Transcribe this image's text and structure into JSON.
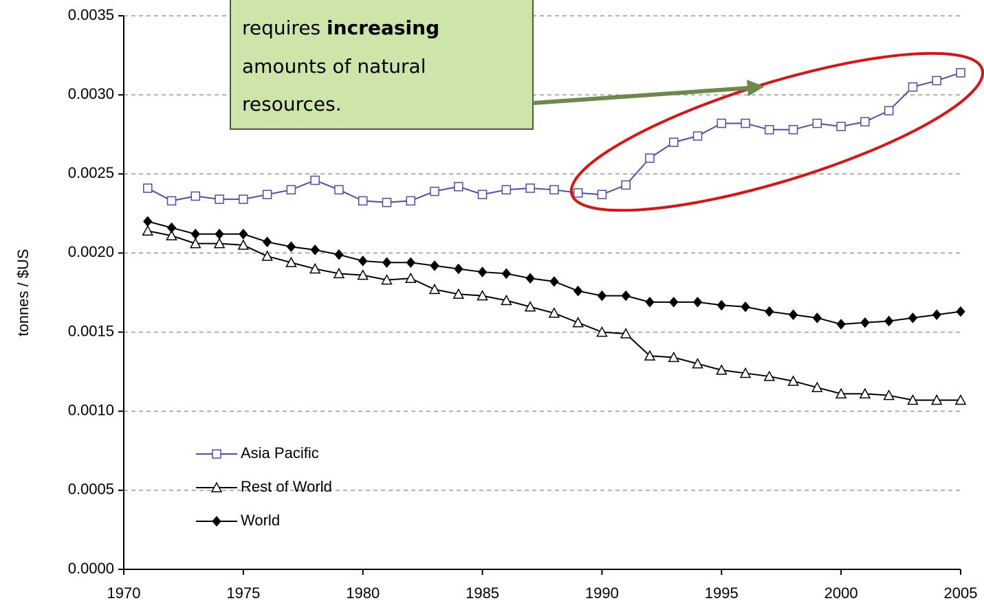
{
  "chart_data": {
    "type": "line",
    "y_label": "tonnes / $US",
    "annotation": {
      "prefix": "requires ",
      "bold": "increasing",
      "lines": [
        "amounts of natural",
        "resources."
      ]
    },
    "x": [
      1971,
      1972,
      1973,
      1974,
      1975,
      1976,
      1977,
      1978,
      1979,
      1980,
      1981,
      1982,
      1983,
      1984,
      1985,
      1986,
      1987,
      1988,
      1989,
      1990,
      1991,
      1992,
      1993,
      1994,
      1995,
      1996,
      1997,
      1998,
      1999,
      2000,
      2001,
      2002,
      2003,
      2004,
      2005
    ],
    "series": [
      {
        "name": "Asia Pacific",
        "color": "#4a4ab8",
        "marker": "square",
        "values": [
          0.00241,
          0.00233,
          0.00236,
          0.00234,
          0.00234,
          0.00237,
          0.0024,
          0.00246,
          0.0024,
          0.00233,
          0.00232,
          0.00233,
          0.00239,
          0.00242,
          0.00237,
          0.0024,
          0.00241,
          0.0024,
          0.00238,
          0.00237,
          0.00243,
          0.0026,
          0.0027,
          0.00274,
          0.00282,
          0.00282,
          0.00278,
          0.00278,
          0.00282,
          0.0028,
          0.00283,
          0.0029,
          0.00305,
          0.00309,
          0.00314
        ]
      },
      {
        "name": "Rest of World",
        "color": "#000000",
        "marker": "triangle",
        "values": [
          0.00214,
          0.00211,
          0.00206,
          0.00206,
          0.00205,
          0.00198,
          0.00194,
          0.0019,
          0.00187,
          0.00186,
          0.00183,
          0.00184,
          0.00177,
          0.00174,
          0.00173,
          0.0017,
          0.00166,
          0.00162,
          0.00156,
          0.0015,
          0.00149,
          0.00135,
          0.00134,
          0.0013,
          0.00126,
          0.00124,
          0.00122,
          0.00119,
          0.00115,
          0.00111,
          0.00111,
          0.0011,
          0.00107,
          0.00107,
          0.00107
        ]
      },
      {
        "name": "World",
        "color": "#000000",
        "marker": "diamond",
        "values": [
          0.0022,
          0.00216,
          0.00212,
          0.00212,
          0.00212,
          0.00207,
          0.00204,
          0.00202,
          0.00199,
          0.00195,
          0.00194,
          0.00194,
          0.00192,
          0.0019,
          0.00188,
          0.00187,
          0.00184,
          0.00182,
          0.00176,
          0.00173,
          0.00173,
          0.00169,
          0.00169,
          0.00169,
          0.00167,
          0.00166,
          0.00163,
          0.00161,
          0.00159,
          0.00155,
          0.00156,
          0.00157,
          0.00159,
          0.00161,
          0.00163
        ]
      }
    ],
    "xlim": [
      1970,
      2005
    ],
    "xticks": [
      1970,
      1975,
      1980,
      1985,
      1990,
      1995,
      2000,
      2005
    ],
    "ylim": [
      0,
      0.0035
    ],
    "yticks": [
      {
        "value": 0,
        "label": "0.0000"
      },
      {
        "value": 0.0005,
        "label": "0.0005"
      },
      {
        "value": 0.001,
        "label": "0.0010"
      },
      {
        "value": 0.0015,
        "label": "0.0015"
      },
      {
        "value": 0.002,
        "label": "0.0020"
      },
      {
        "value": 0.0025,
        "label": "0.0025"
      },
      {
        "value": 0.003,
        "label": "0.0030"
      },
      {
        "value": 0.0035,
        "label": "0.0035"
      }
    ],
    "grid": true
  }
}
